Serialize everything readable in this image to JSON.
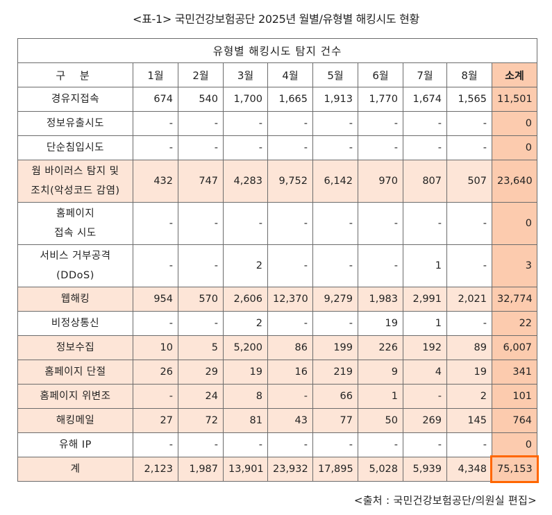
{
  "caption": "<표-1> 국민건강보험공단 2025년 월별/유형별 해킹시도 현황",
  "table": {
    "title": "유형별 해킹시도 탐지 건수",
    "headers": [
      "구  분",
      "1월",
      "2월",
      "3월",
      "4월",
      "5월",
      "6월",
      "7월",
      "8월",
      "소계"
    ],
    "rows": [
      {
        "label": "경유지접속",
        "values": [
          "674",
          "540",
          "1,700",
          "1,665",
          "1,913",
          "1,770",
          "1,674",
          "1,565"
        ],
        "subtotal": "11,501",
        "highlight": false,
        "tall": false
      },
      {
        "label": "정보유출시도",
        "values": [
          "-",
          "-",
          "-",
          "-",
          "-",
          "-",
          "-",
          "-"
        ],
        "subtotal": "0",
        "highlight": false,
        "tall": false
      },
      {
        "label": "단순침입시도",
        "values": [
          "-",
          "-",
          "-",
          "-",
          "-",
          "-",
          "-",
          "-"
        ],
        "subtotal": "0",
        "highlight": false,
        "tall": false
      },
      {
        "label": "웜 바이러스 탐지 및\n조치(악성코드 감염)",
        "values": [
          "432",
          "747",
          "4,283",
          "9,752",
          "6,142",
          "970",
          "807",
          "507"
        ],
        "subtotal": "23,640",
        "highlight": true,
        "tall": true
      },
      {
        "label": "홈페이지\n접속 시도",
        "values": [
          "-",
          "-",
          "-",
          "-",
          "-",
          "-",
          "-",
          "-"
        ],
        "subtotal": "0",
        "highlight": false,
        "tall": true
      },
      {
        "label": "서비스 거부공격\n(DDoS)",
        "values": [
          "-",
          "-",
          "2",
          "-",
          "-",
          "-",
          "1",
          "-"
        ],
        "subtotal": "3",
        "highlight": false,
        "tall": true
      },
      {
        "label": "웹해킹",
        "values": [
          "954",
          "570",
          "2,606",
          "12,370",
          "9,279",
          "1,983",
          "2,991",
          "2,021"
        ],
        "subtotal": "32,774",
        "highlight": true,
        "tall": false
      },
      {
        "label": "비정상통신",
        "values": [
          "-",
          "-",
          "2",
          "-",
          "-",
          "19",
          "1",
          "-"
        ],
        "subtotal": "22",
        "highlight": false,
        "tall": false
      },
      {
        "label": "정보수집",
        "values": [
          "10",
          "5",
          "5,200",
          "86",
          "199",
          "226",
          "192",
          "89"
        ],
        "subtotal": "6,007",
        "highlight": true,
        "tall": false
      },
      {
        "label": "홈페이지 단절",
        "values": [
          "26",
          "29",
          "19",
          "16",
          "219",
          "9",
          "4",
          "19"
        ],
        "subtotal": "341",
        "highlight": true,
        "tall": false
      },
      {
        "label": "홈페이지 위변조",
        "values": [
          "-",
          "24",
          "8",
          "-",
          "66",
          "1",
          "-",
          "2"
        ],
        "subtotal": "101",
        "highlight": true,
        "tall": false
      },
      {
        "label": "해킹메일",
        "values": [
          "27",
          "72",
          "81",
          "43",
          "77",
          "50",
          "269",
          "145"
        ],
        "subtotal": "764",
        "highlight": true,
        "tall": false
      },
      {
        "label": "유해 IP",
        "values": [
          "-",
          "-",
          "-",
          "-",
          "-",
          "-",
          "-",
          "-"
        ],
        "subtotal": "0",
        "highlight": false,
        "tall": false
      }
    ],
    "total": {
      "label": "계",
      "values": [
        "2,123",
        "1,987",
        "13,901",
        "23,932",
        "17,895",
        "5,028",
        "5,939",
        "4,348"
      ],
      "subtotal": "75,153"
    }
  },
  "footnote": "<출처 : 국민건강보험공단/의원실 편집>",
  "colors": {
    "subtotal_bg": "#FCCBAE",
    "highlight_row_bg": "#FDE5D7",
    "total_box": "#FF6600",
    "border": "#6b6b6b"
  }
}
